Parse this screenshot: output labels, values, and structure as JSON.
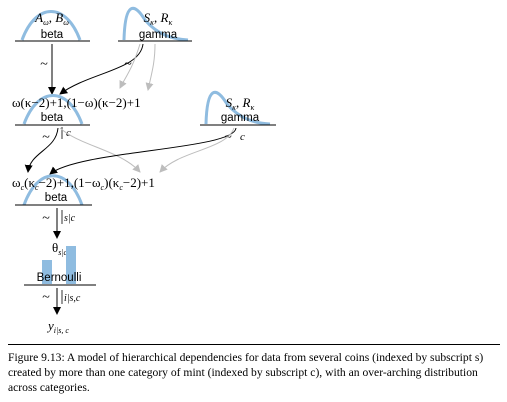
{
  "nodes": {
    "top_beta": {
      "params": "A",
      "param_sub": "ω",
      "param_sep": ", ",
      "param2": "B",
      "param2_sub": "ω",
      "label": "beta"
    },
    "top_gamma": {
      "params": "S",
      "param_sub": "κ",
      "param_sep": ", ",
      "param2": "R",
      "param2_sub": "κ",
      "label": "gamma"
    },
    "omega_beta": {
      "expr": "ω(κ−2)+1,(1−ω)(κ−2)+1",
      "label": "beta"
    },
    "kappa_gamma": {
      "params": "S",
      "param_sub": "κ",
      "param_sep": ", ",
      "param2": "R",
      "param2_sub": "κ",
      "label": "gamma"
    },
    "omega_c_beta": {
      "part1": "ω",
      "part1_sub": "c",
      "part2": "(κ",
      "part2_sub": "c",
      "part3": "−2)+1,(1−ω",
      "part3_sub": "c",
      "part4": ")(κ",
      "part4_sub": "c",
      "part5": "−2)+1",
      "label": "beta"
    },
    "theta": {
      "symbol": "θ",
      "sub": "s|c"
    },
    "bernoulli": {
      "label": "Bernoulli"
    },
    "y": {
      "symbol": "y",
      "sub": "i|s, c"
    }
  },
  "edges": {
    "tilde": "~",
    "omega_to_omega_c": "c",
    "kappa_to_omega_c": "c",
    "omega_c_to_theta": "s|c",
    "theta_to_y": "i|s,c"
  },
  "caption": "Figure 9.13: A model of hierarchical dependencies for data from several coins (indexed by subscript s) created by more than one category of mint (indexed by subscript c), with an over-arching distribution across categories.",
  "colors": {
    "curve": "#8fbce0",
    "bar": "#8fbce0",
    "arrow": "#000000",
    "arrow_light": "#bdbdbd"
  }
}
